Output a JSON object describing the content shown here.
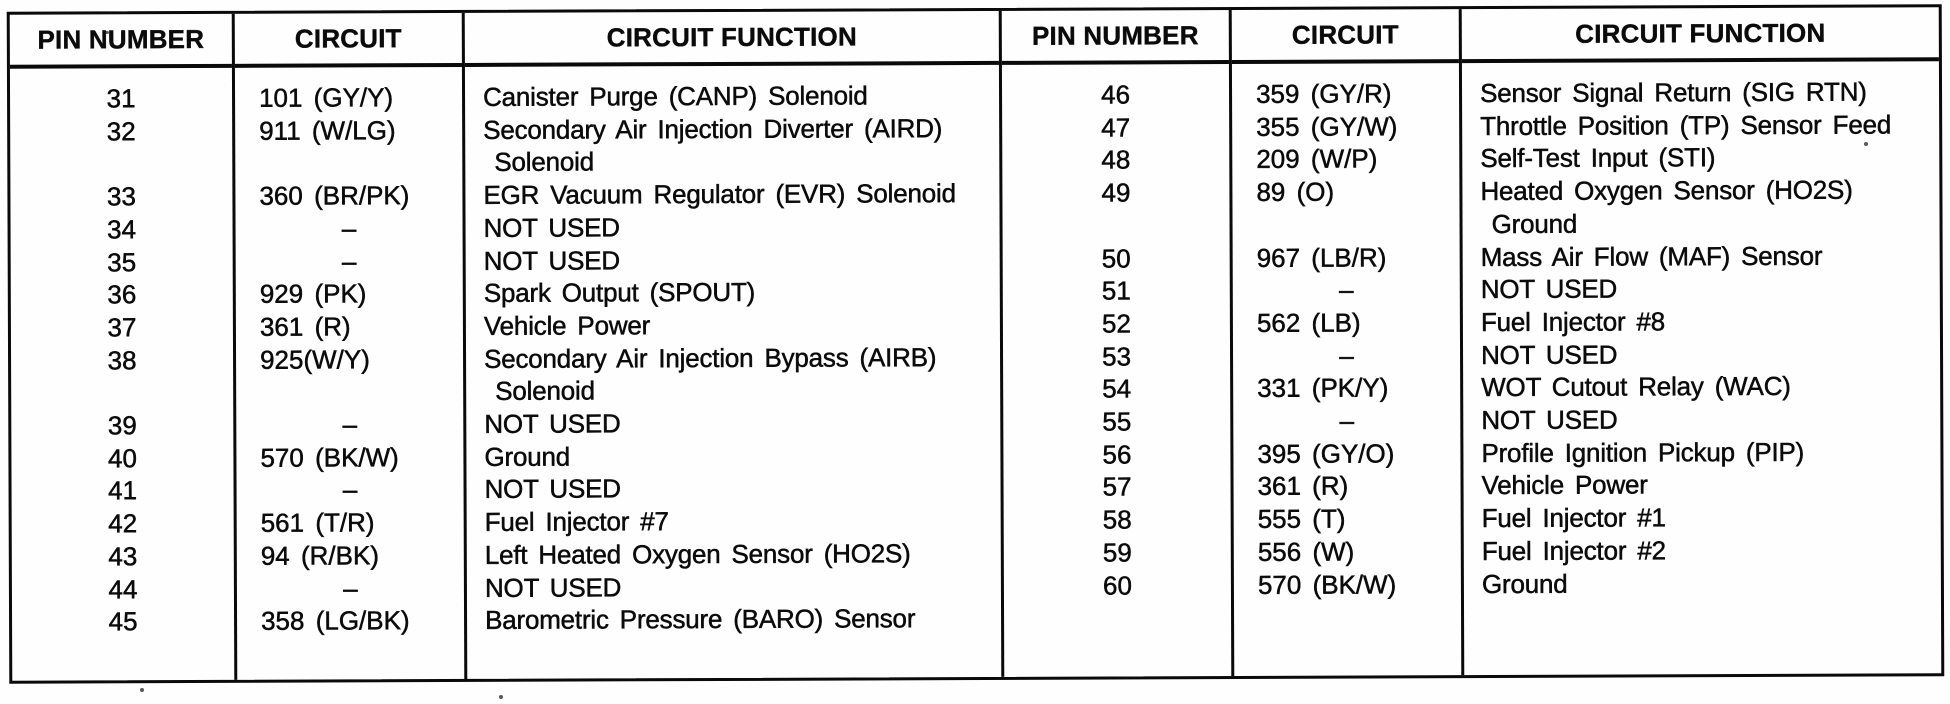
{
  "table": {
    "headers": {
      "pin": "PIN NUMBER",
      "circuit": "CIRCUIT",
      "fn": "CIRCUIT FUNCTION"
    },
    "left": {
      "lines": [
        {
          "pin": "31",
          "circuit": "101 (GY/Y)",
          "fn": "Canister Purge (CANP) Solenoid"
        },
        {
          "pin": "32",
          "circuit": "911 (W/LG)",
          "fn": "Secondary Air Injection Diverter (AIRD)"
        },
        {
          "pin": "",
          "circuit": "",
          "fn": " Solenoid"
        },
        {
          "pin": "33",
          "circuit": "360 (BR/PK)",
          "fn": "EGR Vacuum Regulator (EVR) Solenoid"
        },
        {
          "pin": "34",
          "circuit": "–",
          "fn": "NOT USED"
        },
        {
          "pin": "35",
          "circuit": "–",
          "fn": "NOT USED"
        },
        {
          "pin": "36",
          "circuit": "929 (PK)",
          "fn": "Spark Output (SPOUT)"
        },
        {
          "pin": "37",
          "circuit": "361 (R)",
          "fn": "Vehicle Power"
        },
        {
          "pin": "38",
          "circuit": "925(W/Y)",
          "fn": "Secondary Air Injection Bypass (AIRB)"
        },
        {
          "pin": "",
          "circuit": "",
          "fn": " Solenoid"
        },
        {
          "pin": "39",
          "circuit": "–",
          "fn": "NOT USED"
        },
        {
          "pin": "40",
          "circuit": "570 (BK/W)",
          "fn": "Ground"
        },
        {
          "pin": "41",
          "circuit": "–",
          "fn": "NOT USED"
        },
        {
          "pin": "42",
          "circuit": "561 (T/R)",
          "fn": "Fuel Injector #7"
        },
        {
          "pin": "43",
          "circuit": "94 (R/BK)",
          "fn": "Left Heated Oxygen Sensor (HO2S)"
        },
        {
          "pin": "44",
          "circuit": "–",
          "fn": "NOT USED"
        },
        {
          "pin": "45",
          "circuit": "358 (LG/BK)",
          "fn": "Barometric Pressure (BARO) Sensor"
        }
      ]
    },
    "right": {
      "lines": [
        {
          "pin": "46",
          "circuit": "359 (GY/R)",
          "fn": "Sensor Signal Return (SIG RTN)"
        },
        {
          "pin": "47",
          "circuit": "355 (GY/W)",
          "fn": "Throttle Position (TP) Sensor Feed"
        },
        {
          "pin": "48",
          "circuit": "209 (W/P)",
          "fn": "Self-Test Input (STI)"
        },
        {
          "pin": "49",
          "circuit": "89 (O)",
          "fn": "Heated Oxygen Sensor (HO2S)"
        },
        {
          "pin": "",
          "circuit": "",
          "fn": " Ground"
        },
        {
          "pin": "50",
          "circuit": "967 (LB/R)",
          "fn": "Mass Air Flow (MAF) Sensor"
        },
        {
          "pin": "51",
          "circuit": "–",
          "fn": "NOT USED"
        },
        {
          "pin": "52",
          "circuit": "562 (LB)",
          "fn": "Fuel Injector #8"
        },
        {
          "pin": "53",
          "circuit": "–",
          "fn": "NOT USED"
        },
        {
          "pin": "54",
          "circuit": "331 (PK/Y)",
          "fn": "WOT Cutout Relay (WAC)"
        },
        {
          "pin": "55",
          "circuit": "–",
          "fn": "NOT USED"
        },
        {
          "pin": "56",
          "circuit": "395 (GY/O)",
          "fn": "Profile Ignition Pickup (PIP)"
        },
        {
          "pin": "57",
          "circuit": "361 (R)",
          "fn": "Vehicle Power"
        },
        {
          "pin": "58",
          "circuit": "555 (T)",
          "fn": "Fuel Injector #1"
        },
        {
          "pin": "59",
          "circuit": "556 (W)",
          "fn": "Fuel Injector #2"
        },
        {
          "pin": "60",
          "circuit": "570 (BK/W)",
          "fn": "Ground"
        }
      ]
    }
  }
}
